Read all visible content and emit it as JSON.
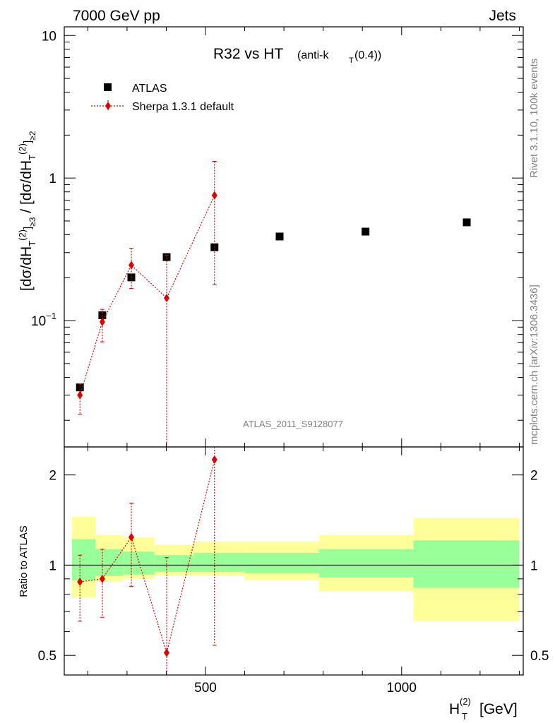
{
  "header": {
    "left": "7000 GeV pp",
    "right": "Jets"
  },
  "side_labels": {
    "rivet": "Rivet 3.1.10,  100k events",
    "mcplots": "mcplots.cern.ch [arXiv:1306.3436]"
  },
  "analysis_tag": "ATLAS_2011_S9128077",
  "chart_data": [
    {
      "type": "scatter",
      "title_main": "R32 vs HT",
      "title_sub": "(anti-k",
      "title_sub_T": "T",
      "title_sub_end": "(0.4))",
      "ylabel": "[dσ/dH_T^(2)]_≥3 / [dσ/dH_T^(2)]_≥2",
      "yscale": "log",
      "ylim": [
        0.013,
        11.5
      ],
      "xlim": [
        140,
        1310
      ],
      "y_ticks": [
        {
          "v": 10,
          "label": "10"
        },
        {
          "v": 1,
          "label": "1"
        },
        {
          "v": 0.1,
          "label": "10",
          "exp": "−1"
        }
      ],
      "legend": [
        {
          "name": "ATLAS",
          "marker": "square",
          "color": "#000000"
        },
        {
          "name": "Sherpa 1.3.1 default",
          "marker": "diamond",
          "color": "#e00000"
        }
      ],
      "series": [
        {
          "name": "ATLAS",
          "x": [
            180,
            237,
            311,
            401,
            523,
            689,
            908,
            1166
          ],
          "y": [
            0.034,
            0.109,
            0.201,
            0.279,
            0.327,
            0.389,
            0.421,
            0.489
          ],
          "xlow": [
            160,
            217,
            276,
            358,
            462,
            594,
            786,
            1031
          ],
          "xhigh": [
            200,
            258,
            345,
            443,
            584,
            784,
            1030,
            1300
          ]
        },
        {
          "name": "Sherpa 1.3.1 default",
          "x": [
            180,
            237,
            311,
            401,
            523
          ],
          "y": [
            0.03,
            0.098,
            0.245,
            0.144,
            0.757
          ],
          "ylow": [
            0.022,
            0.071,
            0.168,
            0.0001,
            0.178
          ],
          "yhigh": [
            0.036,
            0.12,
            0.322,
            0.288,
            1.31
          ]
        }
      ]
    },
    {
      "type": "scatter",
      "ylabel": "Ratio to ATLAS",
      "xlabel": "H",
      "xlabel_sup": "(2)",
      "xlabel_sub": "T",
      "xlabel_unit": "[GeV]",
      "yscale": "log",
      "ylim": [
        0.43,
        2.48
      ],
      "xlim": [
        140,
        1310
      ],
      "x_ticks": [
        {
          "v": 500,
          "label": "500"
        },
        {
          "v": 1000,
          "label": "1000"
        }
      ],
      "y_ticks": [
        {
          "v": 0.5,
          "label": "0.5"
        },
        {
          "v": 1,
          "label": "1"
        },
        {
          "v": 2,
          "label": "2"
        }
      ],
      "bands": [
        {
          "xlow": 160,
          "xhigh": 220,
          "inner": [
            0.89,
            1.22
          ],
          "outer": [
            0.78,
            1.45
          ]
        },
        {
          "xlow": 220,
          "xhigh": 290,
          "inner": [
            0.92,
            1.13
          ],
          "outer": [
            0.88,
            1.26
          ]
        },
        {
          "xlow": 290,
          "xhigh": 370,
          "inner": [
            0.93,
            1.11
          ],
          "outer": [
            0.9,
            1.24
          ]
        },
        {
          "xlow": 370,
          "xhigh": 470,
          "inner": [
            0.95,
            1.08
          ],
          "outer": [
            0.92,
            1.17
          ]
        },
        {
          "xlow": 470,
          "xhigh": 600,
          "inner": [
            0.95,
            1.1
          ],
          "outer": [
            0.92,
            1.2
          ]
        },
        {
          "xlow": 600,
          "xhigh": 790,
          "inner": [
            0.94,
            1.1
          ],
          "outer": [
            0.89,
            1.2
          ]
        },
        {
          "xlow": 790,
          "xhigh": 1030,
          "inner": [
            0.91,
            1.13
          ],
          "outer": [
            0.82,
            1.26
          ]
        },
        {
          "xlow": 1030,
          "xhigh": 1300,
          "inner": [
            0.84,
            1.21
          ],
          "outer": [
            0.65,
            1.44
          ]
        }
      ],
      "series": [
        {
          "name": "Sherpa 1.3.1 default",
          "x": [
            180,
            237,
            311,
            401,
            523
          ],
          "y": [
            0.88,
            0.9,
            1.24,
            0.51,
            2.25
          ],
          "ylow": [
            0.65,
            0.67,
            0.85,
            0.43,
            0.54
          ],
          "yhigh": [
            1.08,
            1.13,
            1.61,
            1.06,
            2.48
          ]
        }
      ]
    }
  ]
}
